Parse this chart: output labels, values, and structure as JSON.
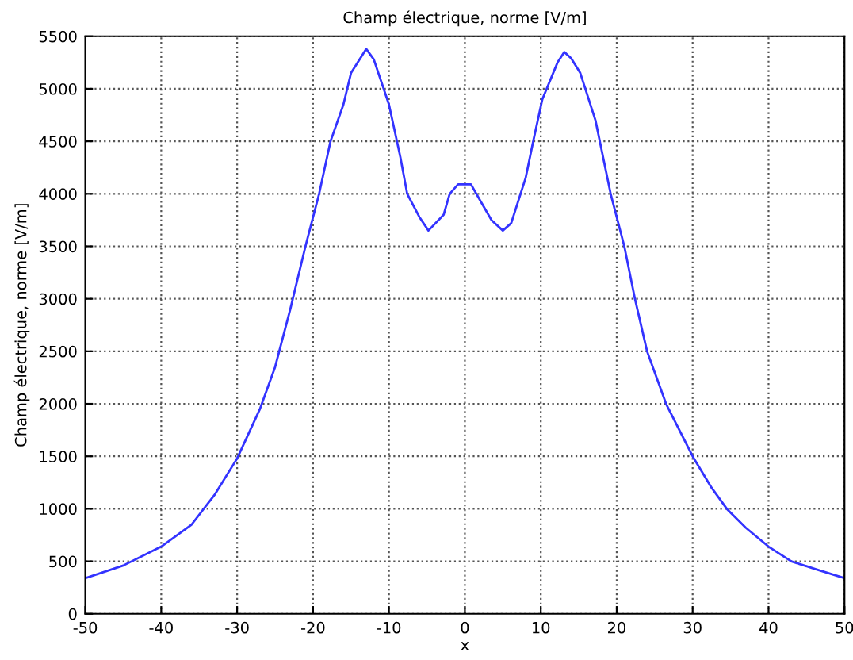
{
  "chart_data": {
    "type": "line",
    "title": "Champ électrique, norme [V/m]",
    "xlabel": "x",
    "ylabel": "Champ électrique, norme [V/m]",
    "x": [
      -50,
      -45,
      -40,
      -36,
      -33,
      -30,
      -27,
      -25,
      -23,
      -21,
      -19.2,
      -17.7,
      -16,
      -15,
      -13,
      -12,
      -10,
      -8.5,
      -7.6,
      -6,
      -4.8,
      -2.8,
      -2,
      -0.9,
      0.8,
      2.3,
      3.5,
      5,
      6.1,
      8,
      9,
      10.2,
      12.2,
      13.1,
      14,
      15.2,
      17.2,
      19.2,
      21,
      22.4,
      24,
      26.5,
      30,
      32.5,
      34.5,
      37,
      40,
      43,
      46,
      50
    ],
    "series": [
      {
        "color": "#3333ff",
        "values": [
          340,
          460,
          640,
          850,
          1130,
          1480,
          1950,
          2350,
          2900,
          3500,
          4000,
          4500,
          4850,
          5150,
          5380,
          5280,
          4850,
          4350,
          4000,
          3780,
          3650,
          3800,
          4000,
          4090,
          4090,
          3900,
          3750,
          3650,
          3720,
          4150,
          4500,
          4900,
          5250,
          5350,
          5290,
          5150,
          4700,
          4000,
          3500,
          3000,
          2500,
          2000,
          1500,
          1200,
          1000,
          820,
          640,
          500,
          430,
          340
        ]
      }
    ],
    "xlim": [
      -50,
      50
    ],
    "ylim": [
      0,
      5500
    ],
    "xticks": [
      -50,
      -40,
      -30,
      -20,
      -10,
      0,
      10,
      20,
      30,
      40,
      50
    ],
    "yticks": [
      0,
      500,
      1000,
      1500,
      2000,
      2500,
      3000,
      3500,
      4000,
      4500,
      5000,
      5500
    ],
    "grid": true,
    "line_style": "solid"
  }
}
